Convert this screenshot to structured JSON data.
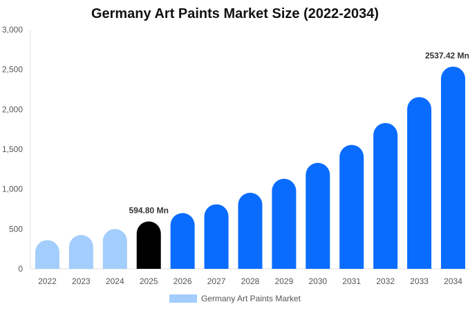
{
  "chart_data": {
    "type": "bar",
    "title": "Germany Art Paints Market Size (2022-2034)",
    "xlabel": "",
    "ylabel": "",
    "categories": [
      "2022",
      "2023",
      "2024",
      "2025",
      "2026",
      "2027",
      "2028",
      "2029",
      "2030",
      "2031",
      "2032",
      "2033",
      "2034"
    ],
    "series": [
      {
        "name": "Germany Art Paints Market",
        "values": [
          360,
          425,
          500,
          594.8,
          700,
          810,
          955,
          1130,
          1330,
          1555,
          1830,
          2155,
          2537.42
        ]
      }
    ],
    "ylim": [
      0,
      3000
    ],
    "yticks": [
      "0",
      "500",
      "1,000",
      "1,500",
      "2,000",
      "2,500",
      "3,000"
    ],
    "data_labels": [
      {
        "category": "2025",
        "text": "594.80 Mn"
      },
      {
        "category": "2034",
        "text": "2537.42 Mn"
      }
    ],
    "colors": {
      "historical": "#a3cdfc",
      "current": "#000000",
      "forecast": "#0a6cff",
      "legend": "#a3cdfc"
    },
    "legend_position": "bottom",
    "grid": false
  }
}
